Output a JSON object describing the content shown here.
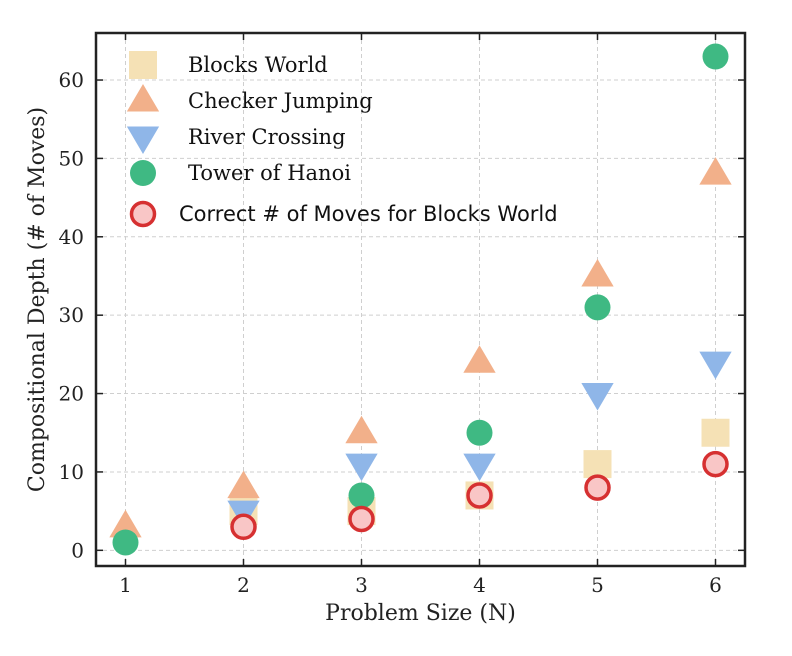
{
  "chart_data": {
    "type": "scatter",
    "title": "",
    "xlabel": "Problem Size (N)",
    "ylabel": "Compositional Depth (# of Moves)",
    "xlim": [
      0.75,
      6.25
    ],
    "ylim": [
      -2,
      66
    ],
    "xticks": [
      1,
      2,
      3,
      4,
      5,
      6
    ],
    "yticks": [
      0,
      10,
      20,
      30,
      40,
      50,
      60
    ],
    "grid": true,
    "legend_position": "top-left",
    "series": [
      {
        "name": "Blocks World",
        "marker": "square",
        "color": "#f5e1b5",
        "x": [
          2,
          3,
          4,
          5,
          6
        ],
        "y": [
          5,
          5,
          7,
          11,
          15
        ]
      },
      {
        "name": "Checker Jumping",
        "marker": "triangle-up",
        "color": "#f2b08a",
        "x": [
          1,
          2,
          3,
          4,
          5,
          6
        ],
        "y": [
          3,
          8,
          15,
          24,
          35,
          48
        ]
      },
      {
        "name": "River Crossing",
        "marker": "triangle-down",
        "color": "#8fb6e8",
        "x": [
          2,
          3,
          4,
          5,
          6
        ],
        "y": [
          5,
          11,
          11,
          20,
          24
        ]
      },
      {
        "name": "Tower of Hanoi",
        "marker": "circle",
        "color": "#3fb983",
        "x": [
          1,
          3,
          4,
          5,
          6
        ],
        "y": [
          1,
          7,
          15,
          31,
          63
        ]
      },
      {
        "name": "Correct # of Moves for Blocks World",
        "marker": "circle-outline",
        "color": "#f9c6c6",
        "edge_color": "#d63031",
        "x": [
          2,
          3,
          4,
          5,
          6
        ],
        "y": [
          3,
          4,
          7,
          8,
          11
        ]
      }
    ]
  }
}
